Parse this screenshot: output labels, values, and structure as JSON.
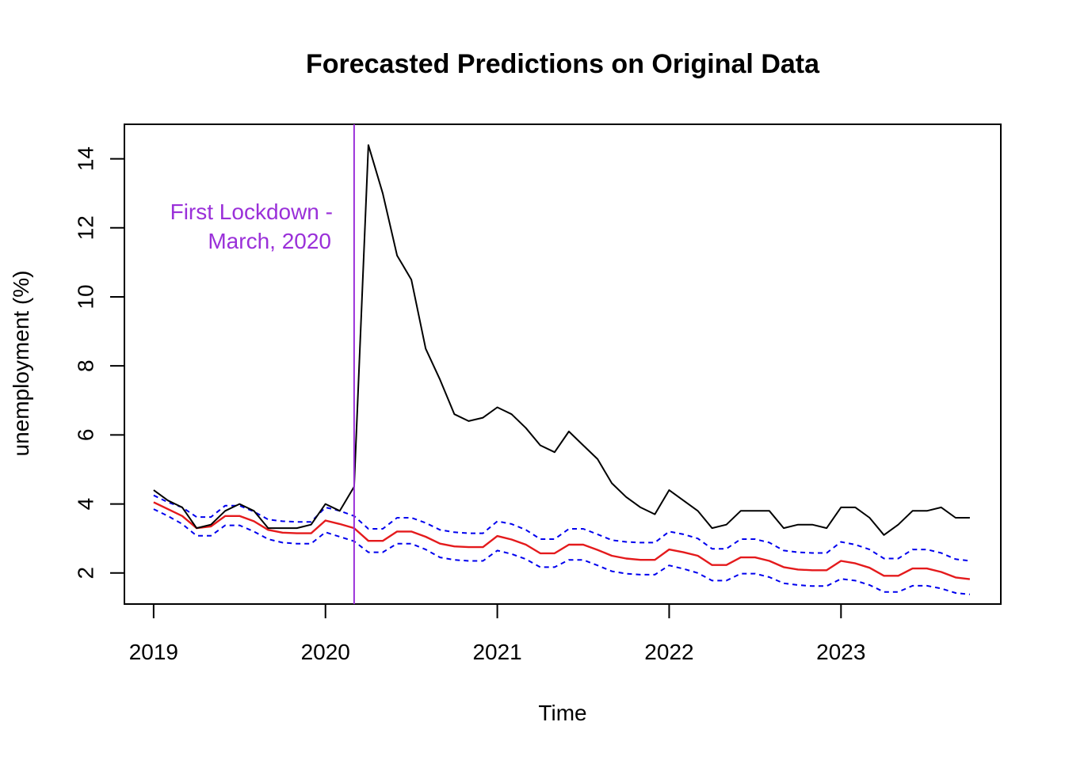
{
  "chart_data": {
    "type": "line",
    "title": "Forecasted Predictions on Original Data",
    "xlabel": "Time",
    "ylabel": "unemployment (%)",
    "xlim": [
      2018.83,
      2023.93
    ],
    "ylim": [
      1.1,
      15.0
    ],
    "x_ticks": [
      2019,
      2020,
      2021,
      2022,
      2023
    ],
    "x_tick_labels": [
      "2019",
      "2020",
      "2021",
      "2022",
      "2023"
    ],
    "y_ticks": [
      2,
      4,
      6,
      8,
      10,
      12,
      14
    ],
    "y_tick_labels": [
      "2",
      "4",
      "6",
      "8",
      "10",
      "12",
      "14"
    ],
    "grid": false,
    "legend": "none",
    "x_start": 2019.0,
    "x_step": 0.08333,
    "series": [
      {
        "key": "actual",
        "color": "#000000",
        "dash": "none",
        "values": [
          4.4,
          4.1,
          3.9,
          3.3,
          3.4,
          3.8,
          4.0,
          3.8,
          3.3,
          3.3,
          3.3,
          3.4,
          4.0,
          3.8,
          4.5,
          14.4,
          13.0,
          11.2,
          10.5,
          8.5,
          7.6,
          6.6,
          6.4,
          6.5,
          6.8,
          6.6,
          6.2,
          5.7,
          5.5,
          6.1,
          5.7,
          5.3,
          4.6,
          4.2,
          3.9,
          3.7,
          4.4,
          4.1,
          3.8,
          3.3,
          3.4,
          3.8,
          3.8,
          3.8,
          3.3,
          3.4,
          3.4,
          3.3,
          3.9,
          3.9,
          3.6,
          3.1,
          3.4,
          3.8,
          3.8,
          3.9,
          3.6,
          3.6
        ]
      },
      {
        "key": "forecast",
        "color": "#e41a1c",
        "dash": "none",
        "values": [
          4.05,
          3.85,
          3.65,
          3.3,
          3.35,
          3.65,
          3.65,
          3.5,
          3.25,
          3.17,
          3.15,
          3.15,
          3.52,
          3.42,
          3.3,
          2.93,
          2.93,
          3.2,
          3.2,
          3.05,
          2.85,
          2.77,
          2.75,
          2.75,
          3.07,
          2.97,
          2.82,
          2.57,
          2.57,
          2.82,
          2.82,
          2.67,
          2.5,
          2.42,
          2.38,
          2.38,
          2.68,
          2.6,
          2.5,
          2.23,
          2.23,
          2.45,
          2.45,
          2.35,
          2.17,
          2.1,
          2.08,
          2.08,
          2.35,
          2.28,
          2.15,
          1.92,
          1.92,
          2.13,
          2.13,
          2.03,
          1.87,
          1.82
        ]
      },
      {
        "key": "upper",
        "color": "#0000ee",
        "dash": "6,5",
        "values": [
          4.25,
          4.05,
          3.9,
          3.62,
          3.62,
          3.95,
          3.95,
          3.78,
          3.55,
          3.5,
          3.48,
          3.48,
          3.9,
          3.8,
          3.65,
          3.28,
          3.28,
          3.6,
          3.6,
          3.45,
          3.25,
          3.18,
          3.15,
          3.15,
          3.5,
          3.42,
          3.25,
          2.98,
          2.98,
          3.28,
          3.28,
          3.12,
          2.95,
          2.9,
          2.88,
          2.88,
          3.2,
          3.12,
          3.0,
          2.7,
          2.7,
          2.98,
          2.98,
          2.88,
          2.65,
          2.6,
          2.58,
          2.58,
          2.9,
          2.82,
          2.68,
          2.42,
          2.42,
          2.68,
          2.68,
          2.58,
          2.4,
          2.35
        ]
      },
      {
        "key": "lower",
        "color": "#0000ee",
        "dash": "6,5",
        "values": [
          3.85,
          3.65,
          3.42,
          3.08,
          3.08,
          3.38,
          3.38,
          3.2,
          2.98,
          2.88,
          2.85,
          2.85,
          3.18,
          3.05,
          2.92,
          2.6,
          2.6,
          2.85,
          2.85,
          2.68,
          2.45,
          2.38,
          2.35,
          2.35,
          2.65,
          2.55,
          2.4,
          2.17,
          2.17,
          2.38,
          2.38,
          2.22,
          2.05,
          1.98,
          1.95,
          1.95,
          2.22,
          2.12,
          2.0,
          1.78,
          1.78,
          1.98,
          1.98,
          1.88,
          1.7,
          1.65,
          1.62,
          1.62,
          1.83,
          1.78,
          1.65,
          1.45,
          1.45,
          1.63,
          1.63,
          1.55,
          1.42,
          1.38
        ]
      }
    ],
    "vline": {
      "x": 2020.1667,
      "color": "#9a30d9"
    },
    "annotation": {
      "lines": [
        "First Lockdown -",
        "March, 2020"
      ],
      "color": "#9a30d9"
    }
  }
}
